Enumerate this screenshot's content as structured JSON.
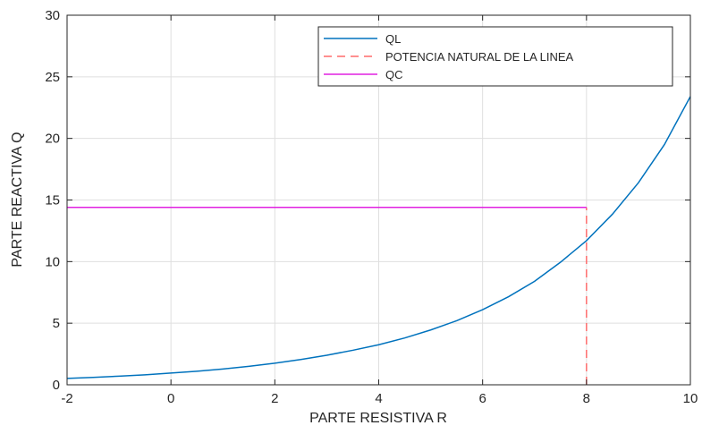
{
  "chart_data": {
    "type": "line",
    "title": "",
    "xlabel": "PARTE RESISTIVA R",
    "ylabel": "PARTE REACTIVA Q",
    "xlim": [
      -2,
      10
    ],
    "ylim": [
      0,
      30
    ],
    "xticks": [
      -2,
      0,
      2,
      4,
      6,
      8,
      10
    ],
    "yticks": [
      0,
      5,
      10,
      15,
      20,
      25,
      30
    ],
    "grid": true,
    "legend_position": "top-right",
    "series": [
      {
        "name": "QL",
        "style": "solid",
        "color": "#0072BD",
        "x": [
          -2,
          -1.5,
          -1,
          -0.5,
          0,
          0.5,
          1,
          1.5,
          2,
          2.5,
          3,
          3.5,
          4,
          4.5,
          5,
          5.5,
          6,
          6.5,
          7,
          7.5,
          8,
          8.5,
          9,
          9.5,
          10
        ],
        "y": [
          0.52,
          0.6,
          0.7,
          0.81,
          0.95,
          1.1,
          1.28,
          1.5,
          1.75,
          2.05,
          2.4,
          2.8,
          3.25,
          3.8,
          4.45,
          5.2,
          6.1,
          7.15,
          8.4,
          9.95,
          11.7,
          13.85,
          16.4,
          19.5,
          23.4
        ]
      },
      {
        "name": "POTENCIA NATURAL DE LA LINEA",
        "style": "dashed",
        "color": "#FF6B6B",
        "x": [
          8,
          8
        ],
        "y": [
          0,
          14.4
        ]
      },
      {
        "name": "QC",
        "style": "solid",
        "color": "#E020E0",
        "x": [
          -2,
          8
        ],
        "y": [
          14.4,
          14.4
        ]
      }
    ]
  }
}
